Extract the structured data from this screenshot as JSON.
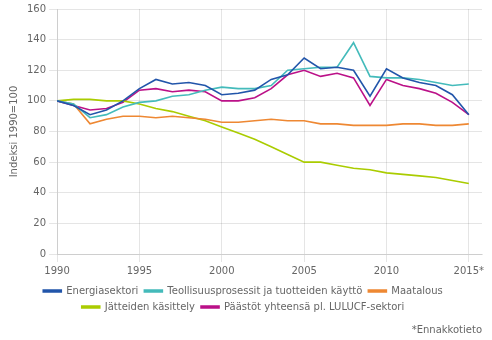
{
  "chart_data": {
    "type": "line",
    "x": [
      1990,
      1991,
      1992,
      1993,
      1994,
      1995,
      1996,
      1997,
      1998,
      1999,
      2000,
      2001,
      2002,
      2003,
      2004,
      2005,
      2006,
      2007,
      2008,
      2009,
      2010,
      2011,
      2012,
      2013,
      2014,
      2015
    ],
    "series": [
      {
        "name": "Energiasektori",
        "color": "#2255aa",
        "values": [
          100,
          97,
          91,
          94,
          100,
          108,
          114,
          111,
          112,
          110,
          104,
          105,
          107,
          114,
          117,
          128,
          121,
          122,
          120,
          103,
          121,
          115,
          112,
          110,
          104,
          91
        ]
      },
      {
        "name": "Teollisuusprosessit ja tuotteiden käyttö",
        "color": "#44bbbb",
        "values": [
          100,
          98,
          89,
          91,
          96,
          99,
          100,
          103,
          104,
          107,
          109,
          108,
          108,
          110,
          120,
          121,
          122,
          122,
          138,
          116,
          115,
          115,
          114,
          112,
          110,
          111
        ]
      },
      {
        "name": "Maatalous",
        "color": "#ee8833",
        "values": [
          100,
          98,
          85,
          88,
          90,
          90,
          89,
          90,
          89,
          88,
          86,
          86,
          87,
          88,
          87,
          87,
          85,
          85,
          84,
          84,
          84,
          85,
          85,
          84,
          84,
          85
        ]
      },
      {
        "name": "Jätteiden käsittely",
        "color": "#aacc00",
        "values": [
          100,
          101,
          101,
          100,
          100,
          98,
          95,
          93,
          90,
          87,
          83,
          79,
          75,
          70,
          65,
          60,
          60,
          58,
          56,
          55,
          53,
          52,
          51,
          50,
          48,
          46
        ]
      },
      {
        "name": "Päästöt yhteensä pl. LULUCF-sektori",
        "color": "#bb1188",
        "values": [
          100,
          97,
          94,
          95,
          99,
          107,
          108,
          106,
          107,
          106,
          100,
          100,
          102,
          108,
          117,
          120,
          116,
          118,
          115,
          97,
          114,
          110,
          108,
          105,
          99,
          91
        ]
      }
    ],
    "ylabel": "Indeksi 1990=100",
    "xlim": [
      1990,
      2015.8
    ],
    "xticks": [
      1990,
      1995,
      2000,
      2005,
      2010,
      {
        "value": 2015,
        "label": "2015*"
      }
    ],
    "ylim": [
      0,
      160
    ],
    "yticks": [
      0,
      20,
      40,
      60,
      80,
      100,
      120,
      140,
      160
    ],
    "annotations": [
      "*Ennakkotieto"
    ],
    "grid": true,
    "legend": "bottom"
  }
}
